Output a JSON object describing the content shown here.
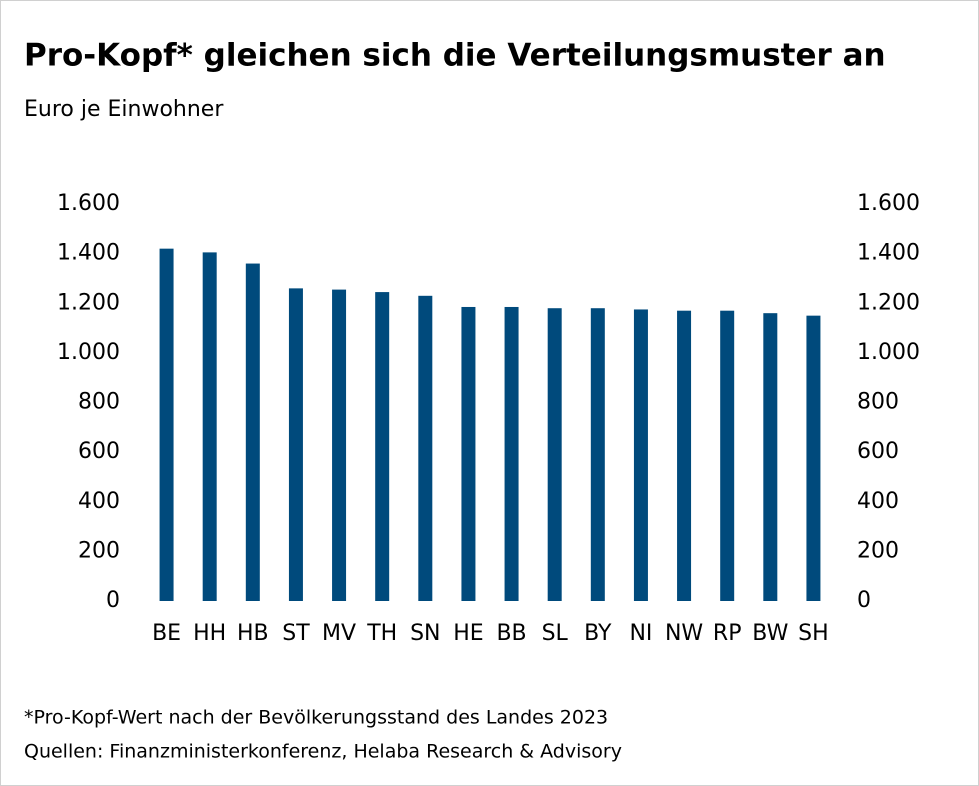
{
  "chart_data": {
    "type": "bar",
    "title": "Pro-Kopf* gleichen sich die Verteilungsmuster an",
    "subtitle": "Euro je Einwohner",
    "categories": [
      "BE",
      "HH",
      "HB",
      "ST",
      "MV",
      "TH",
      "SN",
      "HE",
      "BB",
      "SL",
      "BY",
      "NI",
      "NW",
      "RP",
      "BW",
      "SH"
    ],
    "values": [
      1420,
      1405,
      1360,
      1260,
      1255,
      1245,
      1230,
      1185,
      1185,
      1180,
      1180,
      1175,
      1170,
      1170,
      1160,
      1150
    ],
    "color": "#004a7c",
    "ylim": [
      0,
      1600
    ],
    "yticks": [
      0,
      200,
      400,
      600,
      800,
      {
        "value": 1000,
        "label": "1.000"
      },
      {
        "value": 1200,
        "label": "1.200"
      },
      {
        "value": 1400,
        "label": "1.400"
      },
      {
        "value": 1600,
        "label": "1.600"
      }
    ],
    "y2lim": [
      0,
      1600
    ],
    "y2ticks": [
      0,
      200,
      400,
      600,
      800,
      {
        "value": 1000,
        "label": "1.000"
      },
      {
        "value": 1200,
        "label": "1.200"
      },
      {
        "value": 1400,
        "label": "1.400"
      },
      {
        "value": 1600,
        "label": "1.600"
      }
    ],
    "grid": false,
    "footnote": "*Pro-Kopf-Wert nach der Bevölkerungsstand des Landes 2023",
    "source": "Quellen: Finanzministerkonferenz, Helaba Research & Advisory"
  }
}
